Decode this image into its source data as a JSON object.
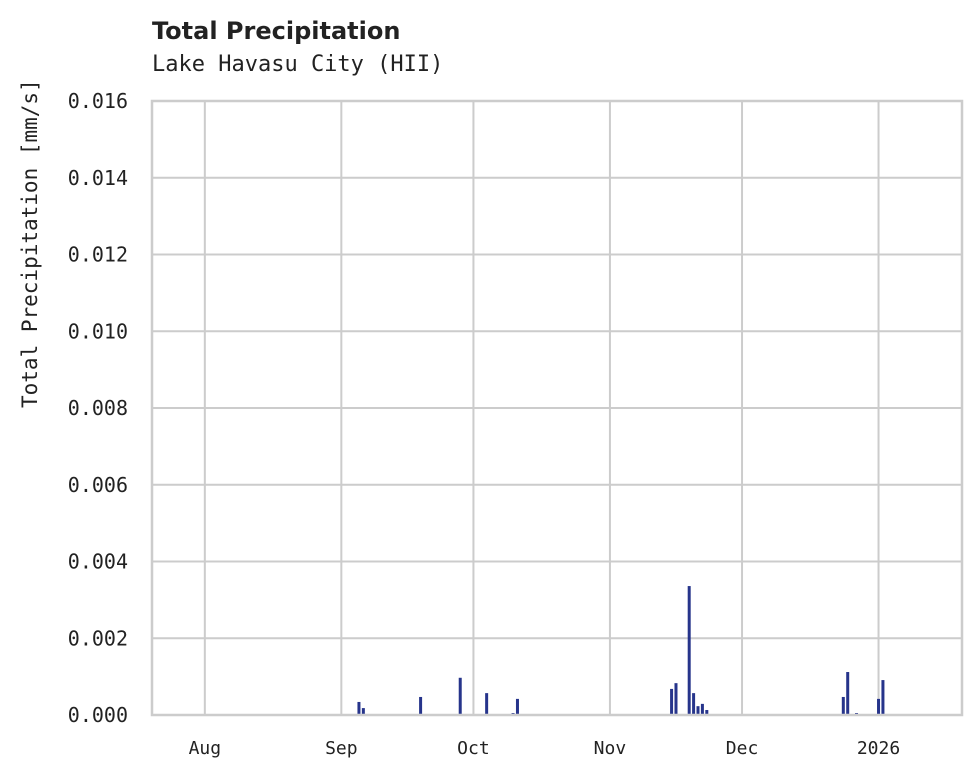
{
  "chart": {
    "title": "Total Precipitation",
    "subtitle": "Lake Havasu City (HII)",
    "ylabel": "Total Precipitation [mm/s]"
  },
  "chart_data": {
    "type": "bar",
    "title": "Total Precipitation",
    "subtitle": "Lake Havasu City (HII)",
    "xlabel": "",
    "ylabel": "Total Precipitation [mm/s]",
    "ylim": [
      0,
      0.016
    ],
    "yticks": [
      "0.000",
      "0.002",
      "0.004",
      "0.006",
      "0.008",
      "0.010",
      "0.012",
      "0.014",
      "0.016"
    ],
    "xticks": [
      "Aug",
      "Sep",
      "Oct",
      "Nov",
      "Dec",
      "2026"
    ],
    "grid": true,
    "bar_color": "#26348b",
    "series": [
      {
        "name": "Total Precipitation",
        "points": [
          {
            "date": "2025-09-05",
            "value": 0.00034
          },
          {
            "date": "2025-09-06",
            "value": 0.00018
          },
          {
            "date": "2025-09-19",
            "value": 0.00047
          },
          {
            "date": "2025-09-28",
            "value": 0.00097
          },
          {
            "date": "2025-10-04",
            "value": 0.00057
          },
          {
            "date": "2025-10-10",
            "value": 5e-05
          },
          {
            "date": "2025-10-11",
            "value": 0.00042
          },
          {
            "date": "2025-11-15",
            "value": 0.00068
          },
          {
            "date": "2025-11-16",
            "value": 0.00083
          },
          {
            "date": "2025-11-19",
            "value": 0.00336
          },
          {
            "date": "2025-11-20",
            "value": 0.00057
          },
          {
            "date": "2025-11-21",
            "value": 0.00023
          },
          {
            "date": "2025-11-22",
            "value": 0.00029
          },
          {
            "date": "2025-11-23",
            "value": 0.00013
          },
          {
            "date": "2025-12-24",
            "value": 0.00047
          },
          {
            "date": "2025-12-25",
            "value": 0.00112
          },
          {
            "date": "2025-12-27",
            "value": 5e-05
          },
          {
            "date": "2026-01-01",
            "value": 0.00042
          },
          {
            "date": "2026-01-02",
            "value": 0.00091
          }
        ]
      }
    ]
  }
}
